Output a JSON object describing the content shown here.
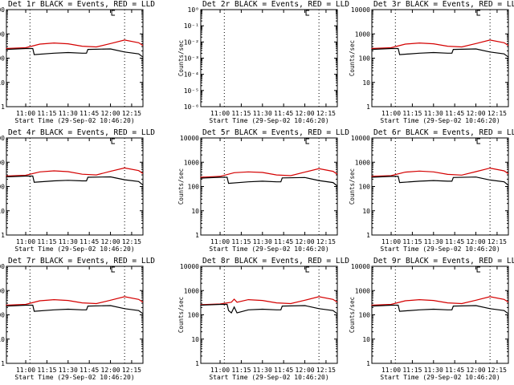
{
  "colors": {
    "events": "#000000",
    "lld": "#d40000",
    "axes": "#000000",
    "background": "#ffffff"
  },
  "shared": {
    "xlabel": "Start Time (29-Sep-02 10:46:20)",
    "ylabel": "Counts/sec",
    "x_ticks": [
      "11:00",
      "11:15",
      "11:30",
      "11:45",
      "12:00",
      "12:15"
    ],
    "xlim": [
      "10:46:20",
      "12:23:00"
    ],
    "dotted_lines_at": [
      "11:03",
      "12:10",
      "12:24"
    ],
    "y_ticks_linear_panels": [
      "1",
      "10",
      "100",
      "1000",
      "10000"
    ],
    "y_scale": "log"
  },
  "chart_data": [
    {
      "type": "line",
      "title": "Det 1r BLACK = Events, RED = LLD",
      "ylim": [
        1,
        10000
      ],
      "series": [
        {
          "x": [
            "10:46",
            "11:00",
            "11:10",
            "11:20",
            "11:30",
            "11:40",
            "11:50",
            "12:00",
            "12:10",
            "12:20",
            "12:23"
          ],
          "values": [
            250,
            270,
            380,
            420,
            390,
            310,
            290,
            400,
            560,
            430,
            330
          ],
          "color": "lld"
        },
        {
          "x": [
            "10:46",
            "11:00",
            "11:05",
            "11:06",
            "11:20",
            "11:30",
            "11:40",
            "11:43",
            "11:44",
            "12:00",
            "12:10",
            "12:20",
            "12:23"
          ],
          "values": [
            230,
            250,
            250,
            140,
            160,
            170,
            160,
            160,
            230,
            240,
            180,
            150,
            110
          ],
          "color": "events"
        }
      ]
    },
    {
      "type": "line",
      "title": "Det 2r BLACK = Events, RED = LLD",
      "ylim": [
        1e-06,
        1
      ],
      "y_ticks": [
        "10⁻⁶",
        "10⁻⁵",
        "10⁻⁴",
        "10⁻³",
        "10⁻²",
        "10⁻¹",
        "10⁰"
      ],
      "series": []
    },
    {
      "type": "line",
      "title": "Det 3r BLACK = Events, RED = LLD",
      "ylim": [
        1,
        10000
      ],
      "series": [
        {
          "x": [
            "10:46",
            "11:00",
            "11:10",
            "11:20",
            "11:30",
            "11:40",
            "11:50",
            "12:00",
            "12:10",
            "12:20",
            "12:23"
          ],
          "values": [
            250,
            270,
            380,
            420,
            390,
            310,
            290,
            400,
            560,
            430,
            330
          ],
          "color": "lld"
        },
        {
          "x": [
            "10:46",
            "11:00",
            "11:05",
            "11:06",
            "11:20",
            "11:30",
            "11:40",
            "11:43",
            "11:44",
            "12:00",
            "12:10",
            "12:20",
            "12:23"
          ],
          "values": [
            230,
            250,
            250,
            140,
            160,
            170,
            160,
            160,
            230,
            240,
            180,
            150,
            110
          ],
          "color": "events"
        }
      ]
    },
    {
      "type": "line",
      "title": "Det 4r BLACK = Events, RED = LLD",
      "ylim": [
        1,
        10000
      ],
      "series": [
        {
          "x": [
            "10:46",
            "11:00",
            "11:10",
            "11:20",
            "11:30",
            "11:40",
            "11:50",
            "12:00",
            "12:10",
            "12:20",
            "12:23"
          ],
          "values": [
            270,
            290,
            400,
            440,
            410,
            320,
            300,
            420,
            580,
            450,
            340
          ],
          "color": "lld"
        },
        {
          "x": [
            "10:46",
            "11:00",
            "11:05",
            "11:06",
            "11:20",
            "11:30",
            "11:40",
            "11:43",
            "11:44",
            "12:00",
            "12:10",
            "12:20",
            "12:23"
          ],
          "values": [
            250,
            270,
            270,
            150,
            170,
            180,
            170,
            170,
            240,
            250,
            190,
            160,
            115
          ],
          "color": "events"
        }
      ]
    },
    {
      "type": "line",
      "title": "Det 5r BLACK = Events, RED = LLD",
      "ylim": [
        1,
        10000
      ],
      "series": [
        {
          "x": [
            "10:46",
            "11:00",
            "11:10",
            "11:20",
            "11:30",
            "11:40",
            "11:50",
            "12:00",
            "12:10",
            "12:20",
            "12:23"
          ],
          "values": [
            240,
            260,
            370,
            400,
            380,
            300,
            280,
            390,
            540,
            420,
            320
          ],
          "color": "lld"
        },
        {
          "x": [
            "10:46",
            "11:00",
            "11:05",
            "11:06",
            "11:20",
            "11:30",
            "11:40",
            "11:43",
            "11:44",
            "12:00",
            "12:10",
            "12:20",
            "12:23"
          ],
          "values": [
            220,
            240,
            240,
            135,
            155,
            165,
            155,
            155,
            225,
            235,
            175,
            145,
            105
          ],
          "color": "events"
        }
      ]
    },
    {
      "type": "line",
      "title": "Det 6r BLACK = Events, RED = LLD",
      "ylim": [
        1,
        10000
      ],
      "series": [
        {
          "x": [
            "10:46",
            "11:00",
            "11:10",
            "11:20",
            "11:30",
            "11:40",
            "11:50",
            "12:00",
            "12:10",
            "12:20",
            "12:23"
          ],
          "values": [
            260,
            280,
            390,
            430,
            400,
            315,
            295,
            410,
            570,
            440,
            335
          ],
          "color": "lld"
        },
        {
          "x": [
            "10:46",
            "11:00",
            "11:05",
            "11:06",
            "11:20",
            "11:30",
            "11:40",
            "11:43",
            "11:44",
            "12:00",
            "12:10",
            "12:20",
            "12:23"
          ],
          "values": [
            240,
            260,
            260,
            145,
            165,
            175,
            165,
            165,
            235,
            245,
            185,
            155,
            112
          ],
          "color": "events"
        }
      ]
    },
    {
      "type": "line",
      "title": "Det 7r BLACK = Events, RED = LLD",
      "ylim": [
        1,
        10000
      ],
      "series": [
        {
          "x": [
            "10:46",
            "11:00",
            "11:10",
            "11:20",
            "11:30",
            "11:40",
            "11:50",
            "12:00",
            "12:10",
            "12:20",
            "12:23"
          ],
          "values": [
            250,
            270,
            380,
            420,
            390,
            310,
            290,
            400,
            560,
            430,
            330
          ],
          "color": "lld"
        },
        {
          "x": [
            "10:46",
            "11:00",
            "11:05",
            "11:06",
            "11:20",
            "11:30",
            "11:40",
            "11:43",
            "11:44",
            "12:00",
            "12:10",
            "12:20",
            "12:23"
          ],
          "values": [
            230,
            250,
            250,
            140,
            160,
            170,
            160,
            160,
            230,
            240,
            180,
            150,
            110
          ],
          "color": "events"
        }
      ]
    },
    {
      "type": "line",
      "title": "Det 8r BLACK = Events, RED = LLD",
      "ylim": [
        1,
        10000
      ],
      "series": [
        {
          "x": [
            "10:46",
            "11:00",
            "11:08",
            "11:10",
            "11:12",
            "11:20",
            "11:30",
            "11:40",
            "11:50",
            "12:00",
            "12:10",
            "12:20",
            "12:23"
          ],
          "values": [
            260,
            280,
            330,
            440,
            330,
            420,
            390,
            310,
            290,
            400,
            560,
            430,
            330
          ],
          "color": "lld"
        },
        {
          "x": [
            "10:46",
            "11:00",
            "11:05",
            "11:06",
            "11:08",
            "11:10",
            "11:12",
            "11:20",
            "11:30",
            "11:40",
            "11:43",
            "11:44",
            "12:00",
            "12:10",
            "12:20",
            "12:23"
          ],
          "values": [
            250,
            270,
            270,
            150,
            120,
            210,
            120,
            160,
            170,
            160,
            160,
            230,
            240,
            180,
            150,
            110
          ],
          "color": "events"
        }
      ]
    },
    {
      "type": "line",
      "title": "Det 9r BLACK = Events, RED = LLD",
      "ylim": [
        1,
        10000
      ],
      "series": [
        {
          "x": [
            "10:46",
            "11:00",
            "11:10",
            "11:20",
            "11:30",
            "11:40",
            "11:50",
            "12:00",
            "12:10",
            "12:20",
            "12:23"
          ],
          "values": [
            250,
            270,
            380,
            420,
            390,
            310,
            290,
            400,
            560,
            430,
            330
          ],
          "color": "lld"
        },
        {
          "x": [
            "10:46",
            "11:00",
            "11:05",
            "11:06",
            "11:20",
            "11:30",
            "11:40",
            "11:43",
            "11:44",
            "12:00",
            "12:10",
            "12:20",
            "12:23"
          ],
          "values": [
            230,
            250,
            250,
            140,
            160,
            170,
            160,
            160,
            230,
            240,
            180,
            150,
            110
          ],
          "color": "events"
        }
      ]
    }
  ]
}
